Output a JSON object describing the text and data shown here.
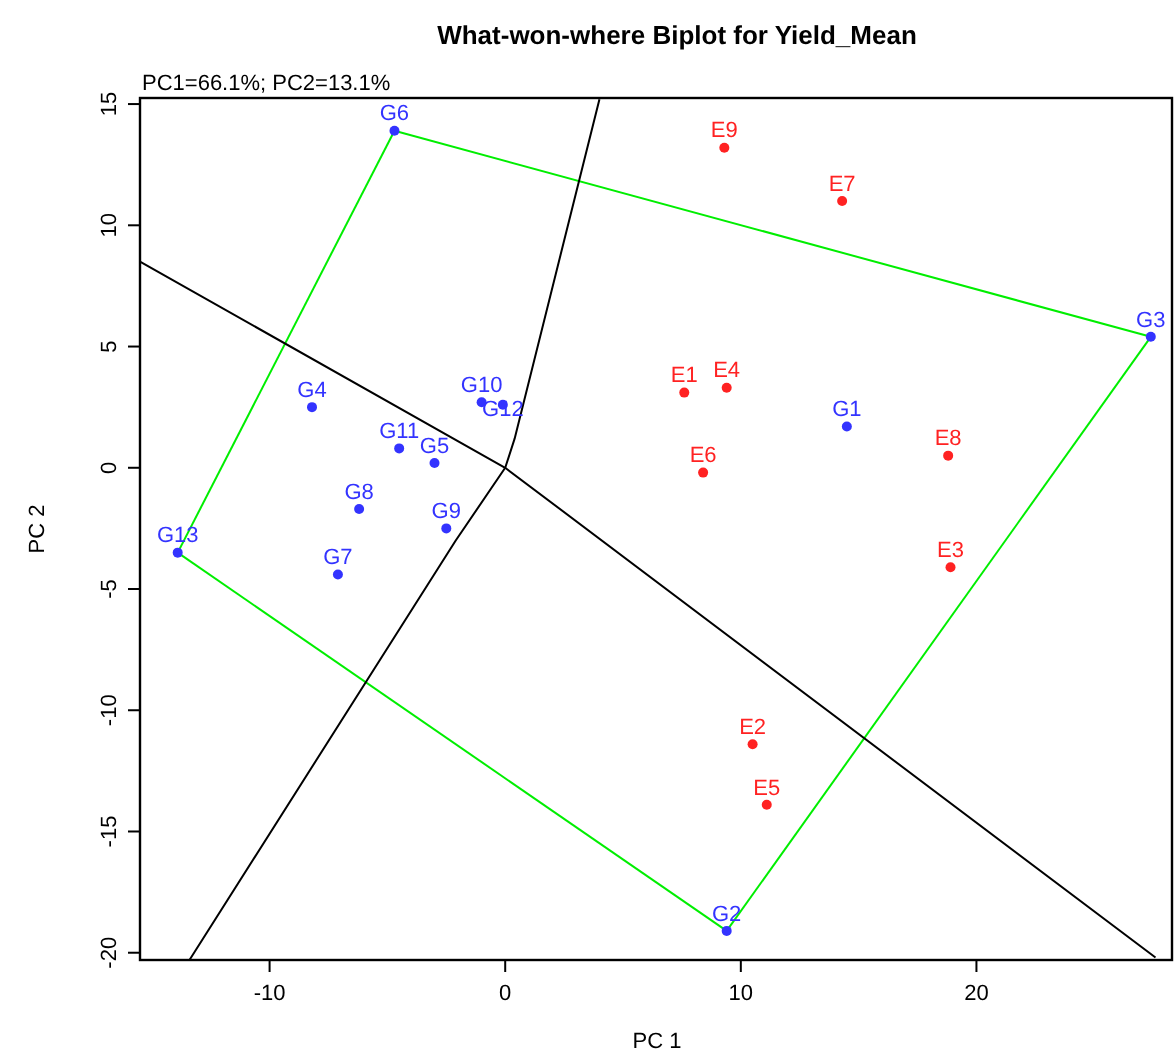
{
  "chart_data": {
    "type": "scatter",
    "title": "What-won-where Biplot for Yield_Mean",
    "subtitle": "PC1=66.1%; PC2=13.1%",
    "xlabel": "PC 1",
    "ylabel": "PC 2",
    "xlim": [
      -15.5,
      28.3
    ],
    "ylim": [
      -20.3,
      15.25
    ],
    "xticks": [
      -10,
      0,
      10,
      20
    ],
    "yticks": [
      -20,
      -15,
      -10,
      -5,
      0,
      5,
      10,
      15
    ],
    "grid": false,
    "series": [
      {
        "type": "line",
        "color": "#00ee00",
        "x": [
          -4.7,
          27.4
        ],
        "values": [
          13.9,
          5.4
        ]
      },
      {
        "type": "line",
        "color": "#00ee00",
        "x": [
          27.4,
          9.4
        ],
        "values": [
          5.4,
          -19.1
        ]
      },
      {
        "type": "line",
        "color": "#00ee00",
        "x": [
          9.4,
          -13.9
        ],
        "values": [
          -19.1,
          -3.5
        ]
      },
      {
        "type": "line",
        "color": "#00ee00",
        "x": [
          -13.9,
          -4.7
        ],
        "values": [
          -3.5,
          13.9
        ]
      },
      {
        "type": "line",
        "color": "#000000",
        "x": [
          4.0,
          0.4,
          0,
          -2.1,
          -13.4
        ],
        "values": [
          15.2,
          1.2,
          0,
          -3.0,
          -20.3
        ]
      },
      {
        "type": "line",
        "color": "#000000",
        "x": [
          -15.5,
          0,
          27.6
        ],
        "values": [
          8.5,
          0,
          -20.2
        ]
      },
      {
        "color": "#3333ff",
        "marker": "circle",
        "x": [
          14.5,
          9.4,
          27.4,
          -8.2,
          -3.0,
          -4.7,
          -7.1,
          -6.2,
          -2.5,
          -1.0,
          -4.5,
          -0.1,
          -13.9
        ],
        "values": [
          1.7,
          -19.1,
          5.4,
          2.5,
          0.2,
          13.9,
          -4.4,
          -1.7,
          -2.5,
          2.7,
          0.8,
          2.6,
          -3.5
        ],
        "value_labels": [
          "G1",
          "G2",
          "G3",
          "G4",
          "G5",
          "G6",
          "G7",
          "G8",
          "G9",
          "G10",
          "G11",
          "G12",
          "G13"
        ]
      },
      {
        "color": "#ff2222",
        "marker": "circle",
        "x": [
          7.6,
          10.5,
          18.9,
          9.4,
          11.1,
          8.4,
          14.3,
          18.8,
          9.3
        ],
        "values": [
          3.1,
          -11.4,
          -4.1,
          3.3,
          -13.9,
          -0.2,
          11.0,
          0.5,
          13.2
        ],
        "value_labels": [
          "E1",
          "E2",
          "E3",
          "E4",
          "E5",
          "E6",
          "E7",
          "E8",
          "E9"
        ]
      }
    ]
  }
}
